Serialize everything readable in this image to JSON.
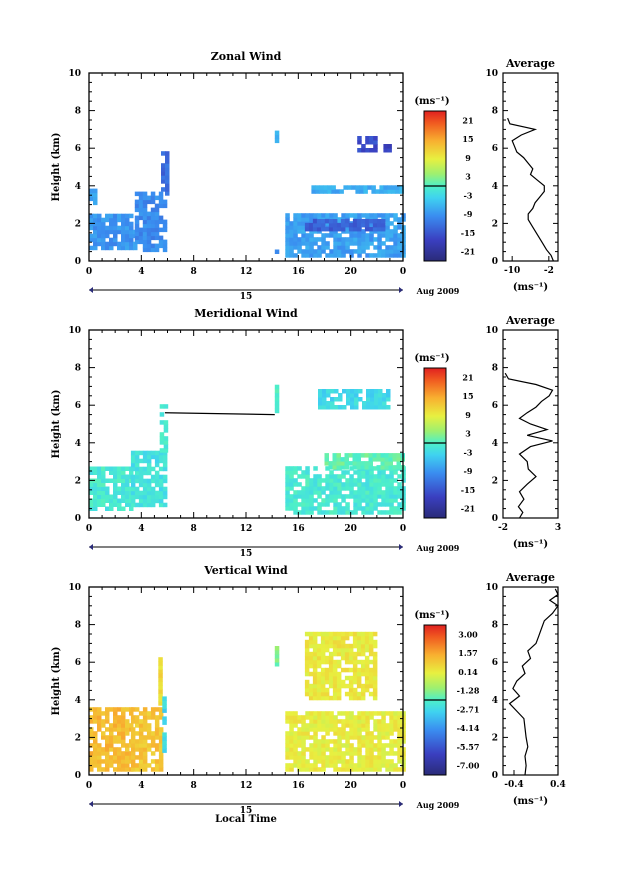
{
  "figure": {
    "xlabel": "Local Time",
    "date_label": "Aug 2009",
    "day_label": "15",
    "unit_label": "(ms⁻¹)"
  },
  "chart_data": [
    {
      "type": "heatmap",
      "title": "Zonal Wind",
      "ylabel": "Height (km)",
      "xlim": [
        0,
        24
      ],
      "ylim": [
        0,
        10
      ],
      "xticks": [
        "0",
        "4",
        "8",
        "12",
        "16",
        "20",
        "0"
      ],
      "yticks": [
        "0",
        "2",
        "4",
        "6",
        "8",
        "10"
      ],
      "colorbar": {
        "ticks": [
          "21",
          "15",
          "9",
          "3",
          "-3",
          "-9",
          "-15",
          "-21"
        ],
        "range": [
          -24,
          24
        ]
      },
      "regions": [
        {
          "x": [
            0,
            0.4
          ],
          "y": [
            3.0,
            3.8
          ],
          "v": -8
        },
        {
          "x": [
            0,
            3.5
          ],
          "y": [
            0.6,
            2.5
          ],
          "v": -9
        },
        {
          "x": [
            3.5,
            5.8
          ],
          "y": [
            0.5,
            3.5
          ],
          "v": -10
        },
        {
          "x": [
            5.5,
            5.9
          ],
          "y": [
            3.5,
            5.8
          ],
          "v": -13
        },
        {
          "x": [
            14.2,
            14.4
          ],
          "y": [
            6.3,
            7.0
          ],
          "v": -7
        },
        {
          "x": [
            14.2,
            14.4
          ],
          "y": [
            0.4,
            0.8
          ],
          "v": -9
        },
        {
          "x": [
            15.0,
            24
          ],
          "y": [
            0.2,
            2.5
          ],
          "v": -8
        },
        {
          "x": [
            16.5,
            22.5
          ],
          "y": [
            1.6,
            2.2
          ],
          "v": -14
        },
        {
          "x": [
            17.0,
            24
          ],
          "y": [
            3.6,
            4.0
          ],
          "v": -7
        },
        {
          "x": [
            20.5,
            22.0
          ],
          "y": [
            5.8,
            6.5
          ],
          "v": -16
        },
        {
          "x": [
            22.5,
            23.0
          ],
          "y": [
            5.8,
            6.2
          ],
          "v": -17
        }
      ],
      "profile": {
        "title": "Average",
        "xlabel": "(ms⁻¹)",
        "xlim": [
          -12,
          0
        ],
        "xticks": [
          -10,
          -2
        ],
        "xticklabels": [
          "-10",
          "-2"
        ],
        "heights": [
          0,
          0.3,
          0.6,
          1.0,
          1.4,
          1.8,
          2.2,
          2.5,
          2.8,
          3.1,
          3.4,
          3.7,
          4.0,
          4.3,
          4.6,
          4.9,
          5.2,
          5.5,
          5.8,
          6.1,
          6.4,
          6.7,
          7.0,
          7.3,
          7.6
        ],
        "values": [
          -1,
          -1.5,
          -2.5,
          -3.5,
          -4.5,
          -5.5,
          -6.5,
          -6.5,
          -5.5,
          -5,
          -4,
          -3,
          -3,
          -4.5,
          -6,
          -5.5,
          -6.5,
          -7.5,
          -9,
          -9.5,
          -10,
          -8,
          -5,
          -10.5,
          -11
        ]
      }
    },
    {
      "type": "heatmap",
      "title": "Meridional Wind",
      "ylabel": "Height (km)",
      "xlim": [
        0,
        24
      ],
      "ylim": [
        0,
        10
      ],
      "xticks": [
        "0",
        "4",
        "8",
        "12",
        "16",
        "20",
        "0"
      ],
      "yticks": [
        "0",
        "2",
        "4",
        "6",
        "8",
        "10"
      ],
      "colorbar": {
        "ticks": [
          "21",
          "15",
          "9",
          "3",
          "-3",
          "-9",
          "-15",
          "-21"
        ],
        "range": [
          -24,
          24
        ]
      },
      "regions": [
        {
          "x": [
            0,
            3.2
          ],
          "y": [
            0.4,
            2.6
          ],
          "v": -1
        },
        {
          "x": [
            3.2,
            5.8
          ],
          "y": [
            0.6,
            3.5
          ],
          "v": -2
        },
        {
          "x": [
            5.4,
            5.8
          ],
          "y": [
            3.5,
            6.0
          ],
          "v": -1
        },
        {
          "x": [
            14.2,
            14.4
          ],
          "y": [
            5.6,
            7.0
          ],
          "v": 0
        },
        {
          "x": [
            15.0,
            24
          ],
          "y": [
            0.2,
            2.6
          ],
          "v": -1
        },
        {
          "x": [
            18.0,
            24
          ],
          "y": [
            2.6,
            3.4
          ],
          "v": 1
        },
        {
          "x": [
            17.5,
            23.0
          ],
          "y": [
            5.8,
            6.8
          ],
          "v": -3
        }
      ],
      "line": {
        "x": [
          5.8,
          14.2
        ],
        "y": [
          5.6,
          5.5
        ]
      },
      "profile": {
        "title": "Average",
        "xlabel": "(ms⁻¹)",
        "xlim": [
          -2,
          3
        ],
        "xticks": [
          -2,
          3
        ],
        "xticklabels": [
          "-2",
          "3"
        ],
        "heights": [
          0,
          0.3,
          0.6,
          1.0,
          1.4,
          1.8,
          2.2,
          2.6,
          3.0,
          3.4,
          3.8,
          4.1,
          4.4,
          4.7,
          5.0,
          5.3,
          5.6,
          5.9,
          6.2,
          6.5,
          6.8,
          7.1,
          7.4,
          7.7
        ],
        "values": [
          -0.5,
          -0.2,
          -0.6,
          -0.1,
          -0.5,
          0.2,
          1.0,
          0.3,
          0.2,
          -0.5,
          0.5,
          2.5,
          0.2,
          2.0,
          0.5,
          -0.5,
          0.2,
          1.0,
          1.5,
          2.2,
          2.5,
          1.0,
          -1.5,
          -1.8
        ]
      }
    },
    {
      "type": "heatmap",
      "title": "Vertical Wind",
      "ylabel": "Height (km)",
      "xlim": [
        0,
        24
      ],
      "ylim": [
        0,
        10
      ],
      "xticks": [
        "0",
        "4",
        "8",
        "12",
        "16",
        "20",
        "0"
      ],
      "yticks": [
        "0",
        "2",
        "4",
        "6",
        "8",
        "10"
      ],
      "colorbar": {
        "ticks": [
          "3.00",
          "1.57",
          "0.14",
          "-1.28",
          "-2.71",
          "-4.14",
          "-5.57",
          "-7.00"
        ],
        "range": [
          -7.7,
          3.7
        ]
      },
      "regions": [
        {
          "x": [
            0,
            3.2
          ],
          "y": [
            0.2,
            3.5
          ],
          "v": 1.2
        },
        {
          "x": [
            3.2,
            5.5
          ],
          "y": [
            0.2,
            3.5
          ],
          "v": 1.0
        },
        {
          "x": [
            5.3,
            5.6
          ],
          "y": [
            3.5,
            6.2
          ],
          "v": 0.5
        },
        {
          "x": [
            5.6,
            5.9
          ],
          "y": [
            1.2,
            4.0
          ],
          "v": -2.8
        },
        {
          "x": [
            14.2,
            14.4
          ],
          "y": [
            5.8,
            7.0
          ],
          "v": -1.5
        },
        {
          "x": [
            15.0,
            24
          ],
          "y": [
            0.2,
            3.2
          ],
          "v": 0.1
        },
        {
          "x": [
            16.5,
            22.0
          ],
          "y": [
            4.0,
            7.6
          ],
          "v": 0.2
        }
      ],
      "profile": {
        "title": "Average",
        "xlabel": "(ms⁻¹)",
        "xlim": [
          -0.6,
          0.4
        ],
        "xticks": [
          -0.4,
          0.4
        ],
        "xticklabels": [
          "-0.4",
          "0.4"
        ],
        "heights": [
          0,
          0.5,
          1.0,
          1.5,
          2.0,
          2.5,
          3.0,
          3.4,
          3.8,
          4.2,
          4.6,
          5.0,
          5.4,
          5.8,
          6.2,
          6.6,
          7.0,
          7.4,
          7.8,
          8.2,
          8.6,
          9.0,
          9.3,
          9.6,
          9.9
        ],
        "values": [
          -0.2,
          -0.18,
          -0.2,
          -0.15,
          -0.18,
          -0.2,
          -0.22,
          -0.35,
          -0.48,
          -0.3,
          -0.42,
          -0.35,
          -0.2,
          -0.25,
          -0.1,
          -0.15,
          0.0,
          0.05,
          0.1,
          0.15,
          0.3,
          0.4,
          0.25,
          0.4,
          0.35
        ]
      }
    }
  ]
}
